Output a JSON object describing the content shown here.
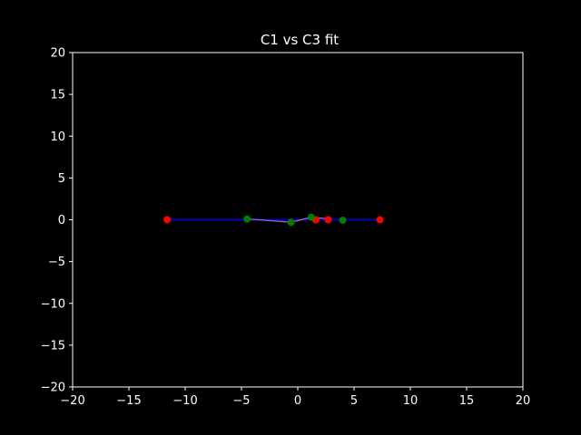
{
  "chart_data": {
    "type": "scatter",
    "title": "C1 vs C3 fit",
    "xlabel": "",
    "ylabel": "",
    "xlim": [
      -20,
      20
    ],
    "ylim": [
      -20,
      20
    ],
    "xticks": [
      -20,
      -15,
      -10,
      -5,
      0,
      5,
      10,
      15,
      20
    ],
    "yticks": [
      -20,
      -15,
      -10,
      -5,
      0,
      5,
      10,
      15,
      20
    ],
    "grid": false,
    "background": "#000000",
    "axes_color": "#ffffff",
    "series": [
      {
        "kind": "line",
        "color": "#0000cc",
        "x": [
          -11.6,
          7.3
        ],
        "y": [
          0.0,
          0.0
        ]
      },
      {
        "kind": "line",
        "color": "#b070c0",
        "x": [
          -4.5,
          -0.6,
          1.2,
          2.8
        ],
        "y": [
          0.1,
          -0.3,
          0.3,
          0.1
        ]
      },
      {
        "kind": "scatter",
        "color": "#ff0000",
        "x": [
          -11.6,
          1.6,
          2.7,
          7.3
        ],
        "y": [
          0.0,
          0.0,
          0.0,
          0.0
        ]
      },
      {
        "kind": "scatter",
        "color": "#008000",
        "x": [
          -4.5,
          -0.6,
          1.2,
          4.0
        ],
        "y": [
          0.1,
          -0.3,
          0.3,
          -0.05
        ]
      }
    ]
  }
}
